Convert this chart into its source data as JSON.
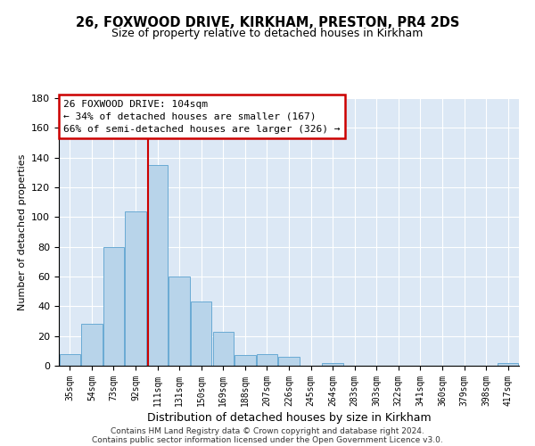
{
  "title": "26, FOXWOOD DRIVE, KIRKHAM, PRESTON, PR4 2DS",
  "subtitle": "Size of property relative to detached houses in Kirkham",
  "xlabel": "Distribution of detached houses by size in Kirkham",
  "ylabel": "Number of detached properties",
  "bar_labels": [
    "35sqm",
    "54sqm",
    "73sqm",
    "92sqm",
    "111sqm",
    "131sqm",
    "150sqm",
    "169sqm",
    "188sqm",
    "207sqm",
    "226sqm",
    "245sqm",
    "264sqm",
    "283sqm",
    "303sqm",
    "322sqm",
    "341sqm",
    "360sqm",
    "379sqm",
    "398sqm",
    "417sqm"
  ],
  "bar_values": [
    8,
    28,
    80,
    104,
    135,
    60,
    43,
    23,
    7,
    8,
    6,
    0,
    2,
    0,
    0,
    0,
    0,
    0,
    0,
    0,
    2
  ],
  "bar_color": "#b8d4ea",
  "bar_edge_color": "#6aaad4",
  "vline_color": "#cc0000",
  "annotation_line1": "26 FOXWOOD DRIVE: 104sqm",
  "annotation_line2": "← 34% of detached houses are smaller (167)",
  "annotation_line3": "66% of semi-detached houses are larger (326) →",
  "annotation_box_color": "white",
  "annotation_box_edge": "#cc0000",
  "ylim": [
    0,
    180
  ],
  "yticks": [
    0,
    20,
    40,
    60,
    80,
    100,
    120,
    140,
    160,
    180
  ],
  "footer_line1": "Contains HM Land Registry data © Crown copyright and database right 2024.",
  "footer_line2": "Contains public sector information licensed under the Open Government Licence v3.0.",
  "bg_color": "#dce8f5",
  "fig_bg_color": "#ffffff",
  "title_fontsize": 10.5,
  "subtitle_fontsize": 9,
  "ylabel_fontsize": 8,
  "xlabel_fontsize": 9
}
